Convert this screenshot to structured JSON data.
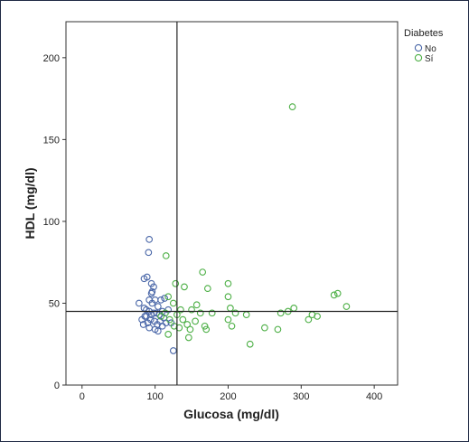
{
  "chart_data": {
    "type": "scatter",
    "xlabel": "Glucosa (mg/dl)",
    "ylabel": "HDL (mg/dl)",
    "xlim": [
      -22,
      432
    ],
    "ylim": [
      0,
      222
    ],
    "xticks": [
      0,
      100,
      200,
      300,
      400
    ],
    "yticks": [
      0,
      50,
      100,
      150,
      200
    ],
    "grid": false,
    "reference_lines": {
      "x": 130,
      "y": 45
    },
    "legend": {
      "title": "Diabetes",
      "position": "top-right"
    },
    "series": [
      {
        "name": "No",
        "color": "#4a67a8",
        "points": [
          [
            92,
            89
          ],
          [
            91,
            81
          ],
          [
            89,
            66
          ],
          [
            85,
            65
          ],
          [
            95,
            62
          ],
          [
            98,
            60
          ],
          [
            96,
            57
          ],
          [
            95,
            56
          ],
          [
            78,
            50
          ],
          [
            92,
            52
          ],
          [
            96,
            50
          ],
          [
            100,
            52
          ],
          [
            104,
            48
          ],
          [
            108,
            52
          ],
          [
            113,
            53
          ],
          [
            85,
            47
          ],
          [
            88,
            46
          ],
          [
            92,
            45
          ],
          [
            98,
            44
          ],
          [
            102,
            44
          ],
          [
            106,
            43
          ],
          [
            110,
            45
          ],
          [
            82,
            40
          ],
          [
            86,
            42
          ],
          [
            90,
            38
          ],
          [
            94,
            40
          ],
          [
            99,
            39
          ],
          [
            103,
            37
          ],
          [
            107,
            39
          ],
          [
            112,
            41
          ],
          [
            84,
            37
          ],
          [
            92,
            35
          ],
          [
            100,
            34
          ],
          [
            104,
            33
          ],
          [
            110,
            36
          ],
          [
            115,
            38
          ],
          [
            122,
            38
          ],
          [
            125,
            21
          ],
          [
            118,
            46
          ],
          [
            95,
            43
          ],
          [
            88,
            42
          ]
        ]
      },
      {
        "name": "Sí",
        "color": "#4caf45",
        "points": [
          [
            288,
            170
          ],
          [
            115,
            79
          ],
          [
            165,
            69
          ],
          [
            200,
            62
          ],
          [
            128,
            62
          ],
          [
            140,
            60
          ],
          [
            172,
            59
          ],
          [
            118,
            54
          ],
          [
            200,
            54
          ],
          [
            125,
            50
          ],
          [
            157,
            49
          ],
          [
            203,
            47
          ],
          [
            135,
            46
          ],
          [
            150,
            46
          ],
          [
            162,
            44
          ],
          [
            178,
            44
          ],
          [
            210,
            44
          ],
          [
            225,
            43
          ],
          [
            290,
            47
          ],
          [
            282,
            45
          ],
          [
            272,
            44
          ],
          [
            345,
            55
          ],
          [
            350,
            56
          ],
          [
            362,
            48
          ],
          [
            315,
            43
          ],
          [
            322,
            42
          ],
          [
            310,
            40
          ],
          [
            108,
            42
          ],
          [
            114,
            44
          ],
          [
            120,
            40
          ],
          [
            126,
            36
          ],
          [
            133,
            35
          ],
          [
            144,
            37
          ],
          [
            148,
            34
          ],
          [
            155,
            39
          ],
          [
            170,
            34
          ],
          [
            168,
            36
          ],
          [
            200,
            40
          ],
          [
            205,
            36
          ],
          [
            250,
            35
          ],
          [
            268,
            34
          ],
          [
            118,
            31
          ],
          [
            146,
            29
          ],
          [
            230,
            25
          ],
          [
            130,
            43
          ],
          [
            138,
            40
          ]
        ]
      }
    ]
  }
}
